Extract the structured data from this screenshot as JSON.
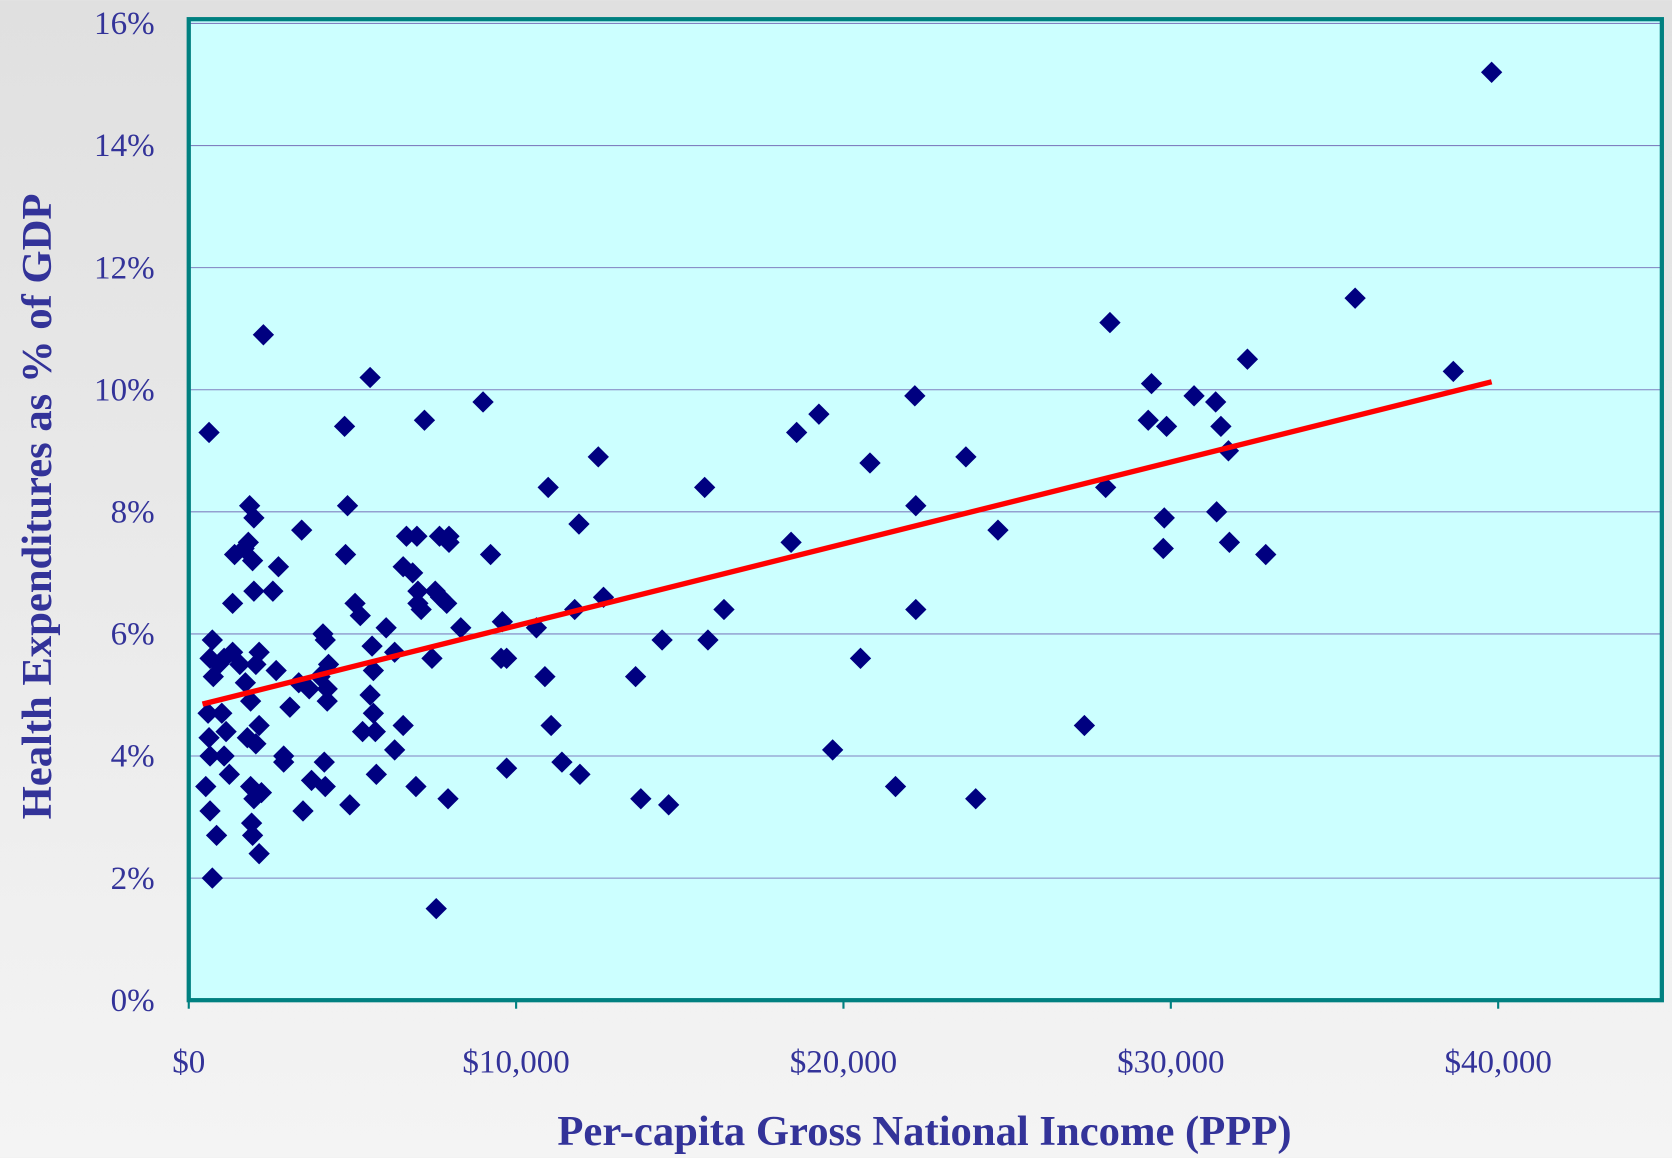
{
  "chart_data": {
    "type": "scatter",
    "y_label": "Health Expenditures as % of GDP",
    "x_label": "Per-capita Gross National Income (PPP)",
    "xlim": [
      0,
      45000
    ],
    "xticks": [
      {
        "value": 0,
        "label": "$0"
      },
      {
        "value": 10000,
        "label": "$10,000"
      },
      {
        "value": 20000,
        "label": "$20,000"
      },
      {
        "value": 30000,
        "label": "$30,000"
      },
      {
        "value": 40000,
        "label": "$40,000"
      }
    ],
    "ylim": [
      0,
      16
    ],
    "yticks": [
      {
        "value": 0,
        "label": "0%"
      },
      {
        "value": 2,
        "label": "2%"
      },
      {
        "value": 4,
        "label": "4%"
      },
      {
        "value": 6,
        "label": "6%"
      },
      {
        "value": 8,
        "label": "8%"
      },
      {
        "value": 10,
        "label": "10%"
      },
      {
        "value": 12,
        "label": "12%"
      },
      {
        "value": 14,
        "label": "14%"
      },
      {
        "value": 16,
        "label": "16%"
      }
    ],
    "grid": true,
    "color": "#000080",
    "x": [
      620,
      720,
      650,
      910,
      750,
      1080,
      1340,
      590,
      1010,
      620,
      1140,
      650,
      1080,
      1240,
      520,
      650,
      850,
      720,
      1340,
      1400,
      1690,
      1820,
      1860,
      1990,
      1950,
      1990,
      2280,
      2570,
      2740,
      2150,
      2050,
      1560,
      1730,
      1890,
      1790,
      2050,
      2150,
      1890,
      2220,
      1990,
      1920,
      1950,
      2150,
      2670,
      2900,
      2900,
      3090,
      3360,
      3450,
      3680,
      3490,
      3750,
      4010,
      4100,
      4170,
      4270,
      4230,
      4230,
      4140,
      4170,
      4760,
      4850,
      4790,
      5080,
      5240,
      4920,
      5310,
      5540,
      5600,
      5640,
      5540,
      5640,
      5700,
      5730,
      6030,
      6290,
      6290,
      6550,
      6550,
      6650,
      6970,
      6840,
      7000,
      7100,
      7000,
      7200,
      7430,
      7530,
      7690,
      7880,
      7660,
      7950,
      7950,
      8310,
      6940,
      7920,
      7560,
      8990,
      9220,
      9580,
      9540,
      9710,
      9710,
      10620,
      10980,
      10880,
      11070,
      11400,
      11920,
      11790,
      11950,
      12510,
      12670,
      13650,
      13810,
      14460,
      14660,
      15760,
      15860,
      16350,
      18400,
      18570,
      19250,
      19670,
      20520,
      20810,
      21590,
      22180,
      22210,
      22210,
      23740,
      24040,
      24720,
      27360,
      28010,
      28140,
      29410,
      29310,
      29870,
      29800,
      29770,
      30710,
      31370,
      31530,
      31760,
      31400,
      31790,
      32340,
      32900,
      35630,
      38630,
      39800
    ],
    "values": [
      9.3,
      5.9,
      5.6,
      5.5,
      5.3,
      5.6,
      5.7,
      4.7,
      4.7,
      4.3,
      4.4,
      4.0,
      4.0,
      3.7,
      3.5,
      3.1,
      2.7,
      2.0,
      6.5,
      7.3,
      7.4,
      7.5,
      8.1,
      7.9,
      7.2,
      6.7,
      10.9,
      6.7,
      7.1,
      5.7,
      5.5,
      5.5,
      5.2,
      4.9,
      4.3,
      4.2,
      4.5,
      3.5,
      3.4,
      3.3,
      2.9,
      2.7,
      2.4,
      5.4,
      4.0,
      3.9,
      4.8,
      5.2,
      7.7,
      5.1,
      3.1,
      3.6,
      5.3,
      6.0,
      5.9,
      5.5,
      4.9,
      5.1,
      3.9,
      3.5,
      9.4,
      8.1,
      7.3,
      6.5,
      6.3,
      3.2,
      4.4,
      10.2,
      5.8,
      5.4,
      5.0,
      4.7,
      4.4,
      3.7,
      6.1,
      5.7,
      4.1,
      4.5,
      7.1,
      7.6,
      7.6,
      7.0,
      6.7,
      6.4,
      6.5,
      9.5,
      5.6,
      6.7,
      6.6,
      6.5,
      7.6,
      7.6,
      7.5,
      6.1,
      3.5,
      3.3,
      1.5,
      9.8,
      7.3,
      6.2,
      5.6,
      5.6,
      3.8,
      6.1,
      8.4,
      5.3,
      4.5,
      3.9,
      7.8,
      6.4,
      3.7,
      8.9,
      6.6,
      5.3,
      3.3,
      5.9,
      3.2,
      8.4,
      5.9,
      6.4,
      7.5,
      9.3,
      9.6,
      4.1,
      5.6,
      8.8,
      3.5,
      9.9,
      8.1,
      6.4,
      8.9,
      3.3,
      7.7,
      4.5,
      8.4,
      11.1,
      10.1,
      9.5,
      9.4,
      7.9,
      7.4,
      9.9,
      9.8,
      9.4,
      9.0,
      8.0,
      7.5,
      10.5,
      7.3,
      11.5,
      10.3,
      15.2
    ],
    "trendline": {
      "color": "#ff0000",
      "x": [
        420,
        39800
      ],
      "values": [
        4.85,
        10.13
      ]
    }
  }
}
